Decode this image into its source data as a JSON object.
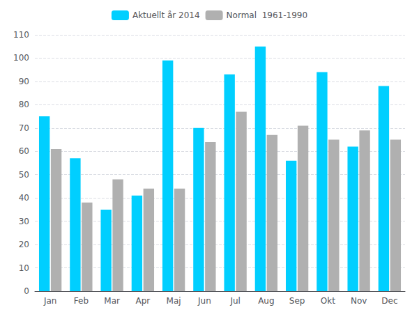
{
  "chart_data": {
    "type": "bar",
    "categories": [
      "Jan",
      "Feb",
      "Mar",
      "Apr",
      "Maj",
      "Jun",
      "Jul",
      "Aug",
      "Sep",
      "Okt",
      "Nov",
      "Dec"
    ],
    "series": [
      {
        "name": "Aktuellt år 2014",
        "color": "#00CFFF",
        "values": [
          75,
          57,
          35,
          41,
          99,
          70,
          93,
          105,
          56,
          94,
          62,
          88
        ]
      },
      {
        "name": "Normal  1961-1990",
        "color": "#B0B0B0",
        "values": [
          61,
          38,
          48,
          44,
          44,
          64,
          77,
          67,
          71,
          65,
          69,
          65
        ]
      }
    ],
    "ylim": [
      0,
      110
    ],
    "yticks": [
      0,
      10,
      20,
      30,
      40,
      50,
      60,
      70,
      80,
      90,
      100,
      110
    ],
    "grid": true,
    "legend": "top"
  }
}
